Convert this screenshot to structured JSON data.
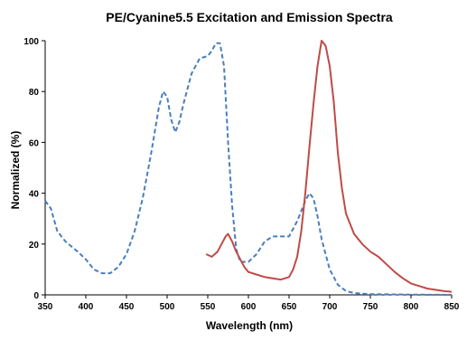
{
  "chart_data": {
    "type": "line",
    "title": "PE/Cyanine5.5 Excitation and Emission Spectra",
    "xlabel": "Wavelength (nm)",
    "ylabel": "Normalized (%)",
    "xlim": [
      350,
      850
    ],
    "ylim": [
      0,
      100
    ],
    "xticks": [
      "350",
      "400",
      "450",
      "500",
      "550",
      "600",
      "650",
      "700",
      "750",
      "800",
      "850"
    ],
    "yticks": [
      "0",
      "20",
      "40",
      "60",
      "80",
      "100"
    ],
    "grid": false,
    "legend": "none",
    "series": [
      {
        "role": "excitation",
        "color": "#4a7ebb",
        "style": "dashed",
        "points": [
          [
            350,
            37
          ],
          [
            357,
            34
          ],
          [
            365,
            25
          ],
          [
            375,
            21
          ],
          [
            390,
            17
          ],
          [
            400,
            14
          ],
          [
            410,
            10
          ],
          [
            420,
            8.5
          ],
          [
            430,
            8.5
          ],
          [
            440,
            11
          ],
          [
            450,
            16
          ],
          [
            460,
            25
          ],
          [
            470,
            38
          ],
          [
            480,
            55
          ],
          [
            490,
            74
          ],
          [
            495,
            80
          ],
          [
            500,
            78
          ],
          [
            505,
            69
          ],
          [
            510,
            64
          ],
          [
            515,
            68
          ],
          [
            520,
            75
          ],
          [
            530,
            87
          ],
          [
            540,
            93
          ],
          [
            550,
            94
          ],
          [
            555,
            96
          ],
          [
            560,
            99
          ],
          [
            565,
            99
          ],
          [
            570,
            90
          ],
          [
            575,
            60
          ],
          [
            580,
            35
          ],
          [
            585,
            18
          ],
          [
            590,
            13
          ],
          [
            600,
            13
          ],
          [
            610,
            16
          ],
          [
            620,
            21
          ],
          [
            630,
            23
          ],
          [
            640,
            23
          ],
          [
            650,
            23
          ],
          [
            660,
            29
          ],
          [
            670,
            37
          ],
          [
            675,
            40
          ],
          [
            680,
            38
          ],
          [
            685,
            31
          ],
          [
            690,
            22
          ],
          [
            700,
            10
          ],
          [
            710,
            4
          ],
          [
            720,
            1.5
          ],
          [
            730,
            0.7
          ],
          [
            750,
            0.3
          ],
          [
            800,
            0.1
          ],
          [
            850,
            0
          ]
        ]
      },
      {
        "role": "emission",
        "color": "#be4b48",
        "style": "solid",
        "points": [
          [
            548,
            16
          ],
          [
            555,
            15
          ],
          [
            562,
            17
          ],
          [
            567,
            20
          ],
          [
            572,
            23
          ],
          [
            575,
            24
          ],
          [
            580,
            21
          ],
          [
            585,
            17
          ],
          [
            590,
            14
          ],
          [
            595,
            11
          ],
          [
            600,
            9
          ],
          [
            610,
            8
          ],
          [
            620,
            7
          ],
          [
            630,
            6.5
          ],
          [
            640,
            6
          ],
          [
            650,
            7
          ],
          [
            655,
            10
          ],
          [
            660,
            15
          ],
          [
            665,
            25
          ],
          [
            670,
            40
          ],
          [
            675,
            58
          ],
          [
            680,
            75
          ],
          [
            685,
            90
          ],
          [
            690,
            100
          ],
          [
            695,
            98
          ],
          [
            700,
            90
          ],
          [
            705,
            76
          ],
          [
            710,
            56
          ],
          [
            715,
            42
          ],
          [
            720,
            32
          ],
          [
            730,
            24
          ],
          [
            740,
            20
          ],
          [
            750,
            17
          ],
          [
            760,
            15
          ],
          [
            770,
            12
          ],
          [
            780,
            9
          ],
          [
            790,
            6.5
          ],
          [
            800,
            4.5
          ],
          [
            810,
            3.5
          ],
          [
            820,
            2.5
          ],
          [
            830,
            2
          ],
          [
            840,
            1.5
          ],
          [
            850,
            1.2
          ]
        ]
      }
    ]
  }
}
